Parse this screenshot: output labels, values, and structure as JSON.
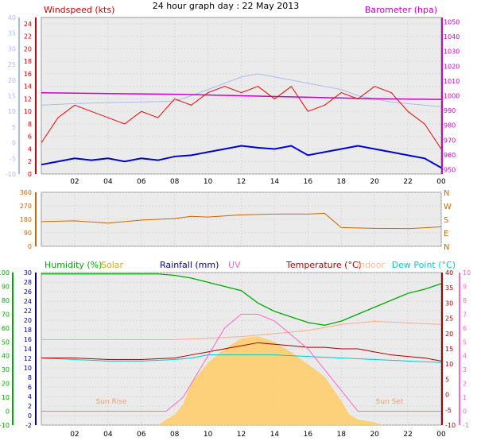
{
  "title": "24 hour graph day : 22 May 2013",
  "x_ticks": [
    "02",
    "04",
    "06",
    "08",
    "10",
    "12",
    "14",
    "16",
    "18",
    "20",
    "22",
    "00"
  ],
  "colors": {
    "wind": "#ff0000",
    "gust_avg": "#0000cc",
    "baro": "#cc00cc",
    "temp_grid": "#aabbee",
    "dir": "#cc6600",
    "hum": "#00aa00",
    "solar": "#ffcc66",
    "rain": "#000099",
    "uv": "#ff66cc",
    "temp": "#aa0000",
    "indoor": "#ffaa88",
    "dew": "#00cccc"
  },
  "chart_data": [
    {
      "type": "line",
      "labels": {
        "wind": "Windspeed (kts)",
        "baro": "Barometer (hpa)"
      },
      "x_range": [
        0,
        24
      ],
      "left_temp_axis": {
        "range": [
          -10,
          40
        ],
        "ticks": [
          -10,
          -5,
          0,
          5,
          10,
          15,
          20,
          25,
          30,
          35,
          40
        ]
      },
      "wind_axis": {
        "range": [
          0,
          25
        ],
        "ticks": [
          0,
          2,
          4,
          6,
          8,
          10,
          12,
          14,
          16,
          18,
          20,
          22,
          24
        ]
      },
      "baro_axis": {
        "range": [
          947,
          1053
        ],
        "ticks": [
          950,
          960,
          970,
          980,
          990,
          1000,
          1010,
          1020,
          1030,
          1040,
          1050
        ]
      },
      "series": {
        "temp": {
          "x": [
            0,
            2,
            4,
            6,
            8,
            9,
            10,
            11,
            12,
            13,
            14,
            15,
            16,
            17,
            18,
            19,
            20,
            21,
            22,
            23,
            24
          ],
          "y": [
            12,
            12.5,
            12.8,
            13,
            13.3,
            15,
            17,
            19,
            21,
            22,
            21,
            20,
            19,
            18,
            17,
            15,
            14,
            13,
            12.5,
            12,
            11.5
          ]
        },
        "baro": {
          "x": [
            0,
            4,
            8,
            12,
            16,
            20,
            24
          ],
          "y": [
            1002,
            1001.5,
            1001,
            1000,
            999,
            998,
            997.5
          ]
        },
        "wind_avg": {
          "x": [
            0,
            1,
            2,
            3,
            4,
            5,
            6,
            7,
            8,
            9,
            10,
            11,
            12,
            13,
            14,
            15,
            16,
            17,
            18,
            19,
            20,
            21,
            22,
            23,
            24
          ],
          "y": [
            1.5,
            2,
            2.5,
            2.2,
            2.5,
            2,
            2.5,
            2.2,
            2.8,
            3,
            3.5,
            4,
            4.5,
            4.2,
            4,
            4.5,
            3,
            3.5,
            4,
            4.5,
            4,
            3.5,
            3,
            2.5,
            1
          ]
        },
        "wind_max": {
          "x": [
            0,
            1,
            2,
            3,
            4,
            5,
            6,
            7,
            8,
            9,
            10,
            11,
            12,
            13,
            14,
            15,
            16,
            17,
            18,
            19,
            20,
            21,
            22,
            23,
            24
          ],
          "y": [
            5,
            9,
            11,
            10,
            9,
            8,
            10,
            9,
            12,
            11,
            13,
            14,
            13,
            14,
            12,
            14,
            10,
            11,
            13,
            12,
            14,
            13,
            10,
            8,
            4
          ]
        }
      }
    },
    {
      "type": "line",
      "labels": {
        "compass": [
          "N",
          "W",
          "S",
          "E",
          "N"
        ]
      },
      "x_range": [
        0,
        24
      ],
      "y_range": [
        0,
        360
      ],
      "y_ticks": [
        0,
        90,
        180,
        270,
        360
      ],
      "series": {
        "direction": {
          "x": [
            0,
            2,
            4,
            6,
            8,
            9,
            10,
            12,
            14,
            16,
            17,
            18,
            20,
            22,
            24
          ],
          "y": [
            165,
            170,
            155,
            175,
            185,
            200,
            195,
            210,
            215,
            215,
            220,
            125,
            120,
            118,
            130
          ]
        }
      }
    },
    {
      "type": "line",
      "labels": {
        "humidity": "Humidity (%)",
        "solar": "Solar",
        "rainfall": "Rainfall (mm)",
        "uv": "UV",
        "temperature": "Temperature (°C)",
        "indoor": "Indoor",
        "dewpoint": "Dew Point (°C)",
        "sunrise": "Sun Rise",
        "sunset": "Sun Set"
      },
      "x_range": [
        0,
        24
      ],
      "humidity_axis": {
        "range": [
          -10,
          100
        ],
        "ticks": [
          -10,
          0,
          10,
          20,
          30,
          40,
          50,
          60,
          70,
          80,
          90,
          100
        ]
      },
      "rain_axis": {
        "range": [
          -2,
          30
        ],
        "ticks": [
          -2,
          0,
          2,
          4,
          6,
          8,
          10,
          12,
          14,
          16,
          18,
          20,
          22,
          24,
          26,
          28,
          30
        ]
      },
      "temp_axis": {
        "range": [
          -10,
          40
        ],
        "ticks": [
          -10,
          -5,
          0,
          5,
          10,
          15,
          20,
          25,
          30,
          35,
          40
        ]
      },
      "uv_axis": {
        "range": [
          -1,
          10
        ],
        "ticks": [
          -1,
          0,
          1,
          2,
          3,
          4,
          5,
          6,
          7,
          8,
          9,
          10
        ]
      },
      "series": {
        "humidity": {
          "x": [
            0,
            2,
            4,
            6,
            7,
            8,
            9,
            10,
            11,
            12,
            13,
            14,
            15,
            16,
            17,
            18,
            19,
            20,
            21,
            22,
            23,
            24
          ],
          "y": [
            99,
            99,
            99,
            99,
            99,
            98,
            96,
            93,
            90,
            87,
            78,
            72,
            68,
            64,
            62,
            65,
            70,
            75,
            80,
            85,
            88,
            92
          ]
        },
        "solar": {
          "x": [
            7,
            7.5,
            8,
            8.5,
            9,
            10,
            11,
            12,
            13,
            14,
            15,
            16,
            17,
            18,
            18.5,
            19,
            19.5,
            20,
            20.5
          ],
          "y": [
            0,
            8,
            15,
            30,
            60,
            90,
            110,
            125,
            128,
            120,
            105,
            88,
            70,
            35,
            15,
            8,
            6,
            4,
            0
          ]
        },
        "uv": {
          "x": [
            0,
            7,
            7.5,
            8,
            8.5,
            9,
            10,
            10.5,
            11,
            12,
            13,
            14,
            15,
            16,
            17,
            18,
            19,
            20,
            24
          ],
          "y": [
            0,
            0,
            0,
            0.5,
            1,
            2,
            4,
            5,
            6,
            7,
            7,
            6.5,
            5.5,
            4.5,
            3,
            1.5,
            0,
            0,
            0
          ]
        },
        "temperature": {
          "x": [
            0,
            2,
            4,
            6,
            8,
            9,
            10,
            11,
            12,
            13,
            14,
            15,
            16,
            17,
            18,
            19,
            20,
            21,
            22,
            23,
            24
          ],
          "y": [
            12,
            12,
            11.5,
            11.5,
            12,
            13,
            14,
            15,
            16,
            17,
            16.5,
            16,
            15.5,
            15.5,
            15,
            15,
            14,
            13,
            12.5,
            12,
            11
          ]
        },
        "indoor": {
          "x": [
            0,
            4,
            8,
            12,
            16,
            18,
            20,
            22,
            24
          ],
          "y": [
            18,
            18,
            18,
            19,
            21,
            23,
            24,
            23.5,
            23
          ]
        },
        "dewpoint": {
          "x": [
            0,
            2,
            4,
            6,
            8,
            9,
            10,
            12,
            14,
            16,
            18,
            20,
            22,
            24
          ],
          "y": [
            12,
            11.5,
            11,
            11,
            11.5,
            12,
            13,
            13,
            13,
            12.5,
            12,
            11.5,
            11,
            10.5
          ]
        }
      }
    }
  ]
}
